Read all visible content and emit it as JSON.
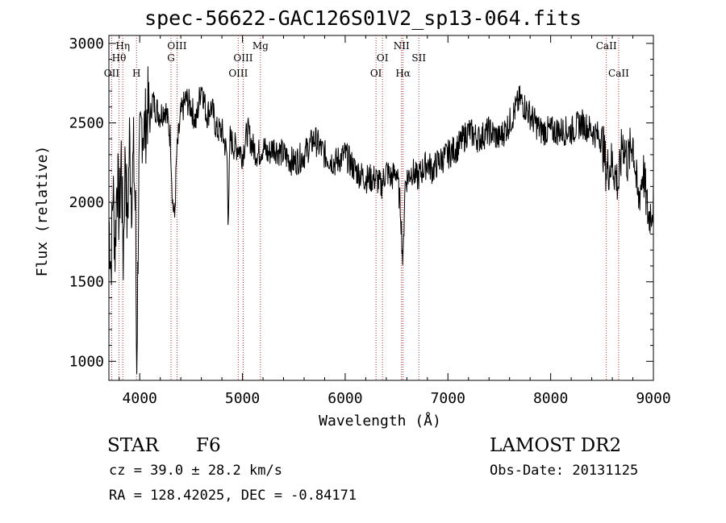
{
  "title": "spec-56622-GAC126S01V2_sp13-064.fits",
  "chart_data": {
    "type": "line",
    "xlabel": "Wavelength (Å)",
    "ylabel": "Flux (relative)",
    "xlim": [
      3700,
      9000
    ],
    "ylim": [
      880,
      3050
    ],
    "xticks": [
      4000,
      5000,
      6000,
      7000,
      8000,
      9000
    ],
    "yticks": [
      1000,
      1500,
      2000,
      2500,
      3000
    ],
    "series": [
      {
        "x": [
          3700,
          3720,
          3740,
          3760,
          3780,
          3800,
          3820,
          3840,
          3860,
          3880,
          3900,
          3920,
          3940,
          3960,
          3970,
          3980,
          3990,
          4000,
          4020,
          4050,
          4080,
          4102,
          4120,
          4150,
          4200,
          4250,
          4300,
          4320,
          4340,
          4360,
          4400,
          4450,
          4500,
          4550,
          4600,
          4650,
          4700,
          4750,
          4800,
          4850,
          4861,
          4880,
          4920,
          4960,
          5000,
          5050,
          5100,
          5150,
          5200,
          5250,
          5300,
          5400,
          5500,
          5600,
          5700,
          5800,
          5900,
          6000,
          6100,
          6200,
          6300,
          6350,
          6400,
          6450,
          6500,
          6540,
          6563,
          6580,
          6600,
          6650,
          6700,
          6750,
          6800,
          6850,
          6900,
          7000,
          7100,
          7200,
          7300,
          7400,
          7500,
          7600,
          7700,
          7800,
          7900,
          8000,
          8100,
          8200,
          8300,
          8400,
          8500,
          8542,
          8600,
          8662,
          8700,
          8750,
          8800,
          8850,
          8900,
          8950,
          9000
        ],
        "y": [
          1900,
          1600,
          2100,
          1700,
          2200,
          1900,
          2300,
          1650,
          2350,
          1800,
          2400,
          2050,
          2300,
          1900,
          930,
          1500,
          2100,
          2300,
          2500,
          2450,
          2600,
          2500,
          2650,
          2600,
          2550,
          2600,
          2400,
          2000,
          1900,
          2300,
          2550,
          2650,
          2600,
          2500,
          2750,
          2550,
          2600,
          2450,
          2450,
          2300,
          1900,
          2400,
          2350,
          2350,
          2300,
          2450,
          2350,
          2300,
          2350,
          2300,
          2350,
          2300,
          2250,
          2300,
          2400,
          2300,
          2250,
          2300,
          2200,
          2150,
          2150,
          2100,
          2200,
          2150,
          2200,
          1950,
          1600,
          2100,
          2150,
          2200,
          2150,
          2200,
          2250,
          2200,
          2250,
          2300,
          2350,
          2450,
          2400,
          2450,
          2400,
          2500,
          2650,
          2550,
          2450,
          2450,
          2450,
          2450,
          2500,
          2450,
          2400,
          2200,
          2250,
          2100,
          2400,
          2250,
          2400,
          2000,
          2200,
          1900,
          2000
        ]
      }
    ],
    "line_markers": [
      {
        "label": "OII",
        "x": 3727,
        "row": 3
      },
      {
        "label": "Hθ",
        "x": 3798,
        "row": 2
      },
      {
        "label": "Hη",
        "x": 3835,
        "row": 1
      },
      {
        "label": "H",
        "x": 3969,
        "row": 3
      },
      {
        "label": "G",
        "x": 4305,
        "row": 2
      },
      {
        "label": "OIII",
        "x": 4363,
        "row": 1
      },
      {
        "label": "OIII",
        "x": 4959,
        "row": 3
      },
      {
        "label": "OIII",
        "x": 5007,
        "row": 2
      },
      {
        "label": "Mg",
        "x": 5175,
        "row": 1
      },
      {
        "label": "OI",
        "x": 6300,
        "row": 3
      },
      {
        "label": "OI",
        "x": 6363,
        "row": 2
      },
      {
        "label": "NII",
        "x": 6548,
        "row": 1
      },
      {
        "label": "Hα",
        "x": 6563,
        "row": 3
      },
      {
        "label": "SII",
        "x": 6717,
        "row": 2
      },
      {
        "label": "CaII",
        "x": 8542,
        "row": 1
      },
      {
        "label": "CaII",
        "x": 8662,
        "row": 3
      }
    ]
  },
  "info": {
    "object": "STAR",
    "subclass": "F6",
    "survey": "LAMOST DR2",
    "cz": "cz = 39.0 ± 28.2 km/s",
    "obs_date": "Obs-Date: 20131125",
    "coords": "RA = 128.42025, DEC =  -0.84171"
  }
}
